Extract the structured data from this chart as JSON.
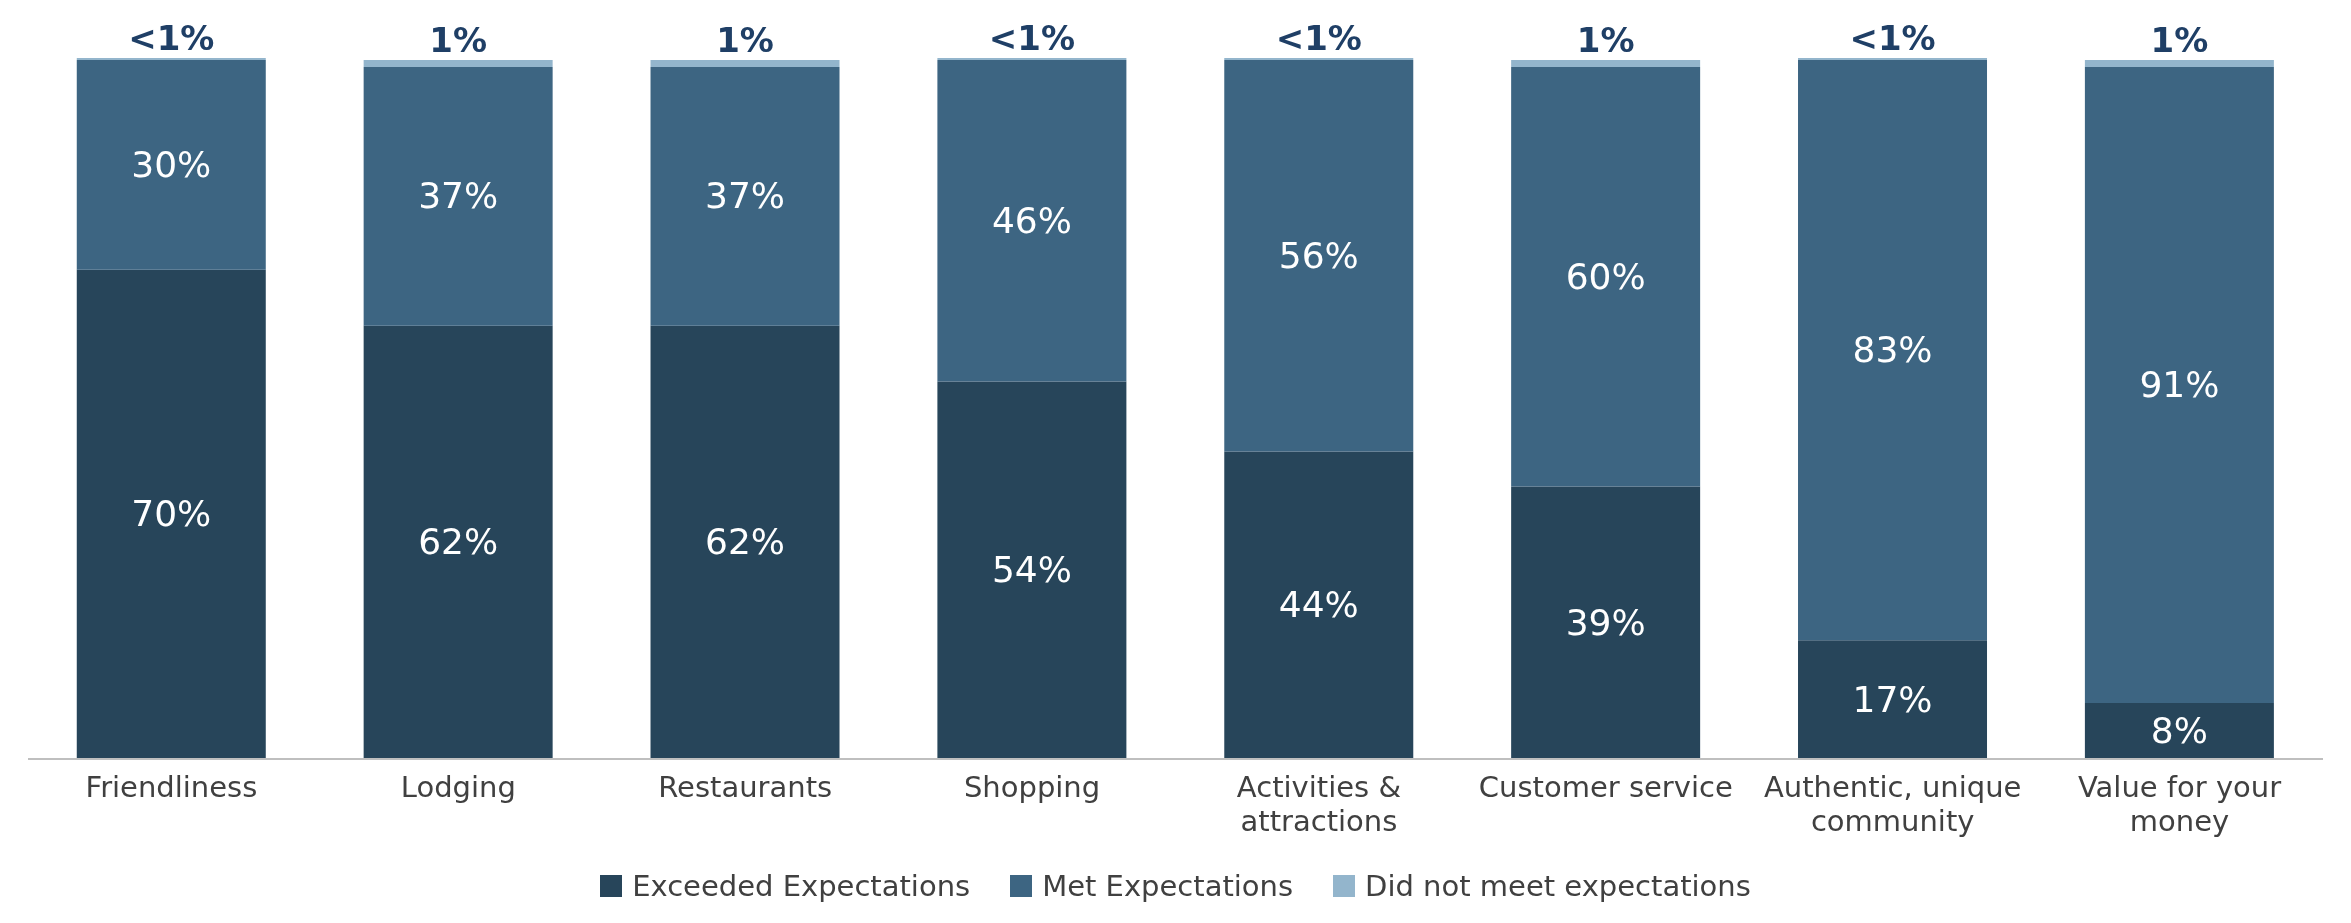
{
  "chart_data": {
    "type": "bar",
    "stacked": true,
    "categories": [
      "Friendliness",
      "Lodging",
      "Restaurants",
      "Shopping",
      "Activities & attractions",
      "Customer service",
      "Authentic, unique community",
      "Value for your money"
    ],
    "series": [
      {
        "name": "Exceeded Expectations",
        "color": "#27455a",
        "values": [
          70,
          62,
          62,
          54,
          44,
          39,
          17,
          8
        ],
        "value_labels": [
          "70%",
          "62%",
          "62%",
          "54%",
          "44%",
          "39%",
          "17%",
          "8%"
        ]
      },
      {
        "name": "Met Expectations",
        "color": "#3d6582",
        "values": [
          30,
          37,
          37,
          46,
          56,
          60,
          83,
          91
        ],
        "value_labels": [
          "30%",
          "37%",
          "37%",
          "46%",
          "56%",
          "60%",
          "83%",
          "91%"
        ]
      },
      {
        "name": "Did not meet expectations",
        "color": "#93b5cc",
        "values": [
          0.3,
          1,
          1,
          0.3,
          0.3,
          1,
          0.3,
          1
        ],
        "value_labels": [
          "<1%",
          "1%",
          "1%",
          "<1%",
          "<1%",
          "1%",
          "<1%",
          "1%"
        ]
      }
    ],
    "legend": "bottom",
    "grid": false,
    "tick_labels": "x"
  }
}
